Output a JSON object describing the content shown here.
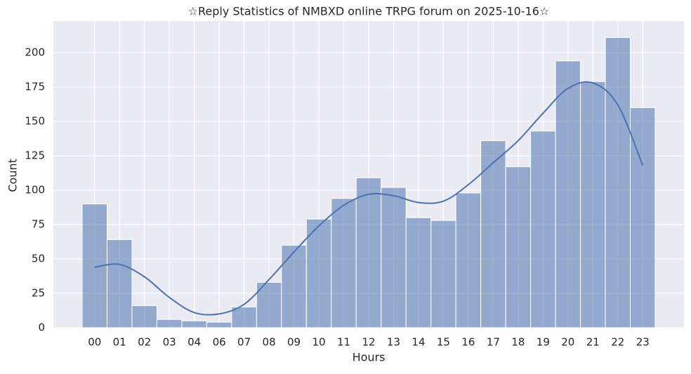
{
  "chart_data": {
    "type": "histogram",
    "title": "☆Reply Statistics of NMBXD online TRPG forum on 2025-10-16☆",
    "x_label": "Hours",
    "y_label": "Count",
    "categories": [
      "00",
      "01",
      "02",
      "03",
      "04",
      "06",
      "07",
      "08",
      "09",
      "10",
      "11",
      "12",
      "13",
      "14",
      "15",
      "16",
      "17",
      "18",
      "19",
      "20",
      "21",
      "22",
      "23"
    ],
    "values": [
      90,
      64,
      16,
      6,
      5,
      4,
      15,
      33,
      60,
      79,
      94,
      109,
      102,
      80,
      78,
      98,
      136,
      117,
      143,
      194,
      179,
      211,
      160
    ],
    "color": "#4c72b0",
    "kde": {
      "values": [
        44,
        46,
        37,
        22,
        11,
        10,
        17,
        35,
        55,
        74,
        89,
        97,
        96,
        91,
        92,
        104,
        120,
        136,
        156,
        174,
        178,
        162,
        118
      ],
      "color": "#4c72b0"
    },
    "ylim": [
      0,
      223
    ],
    "yticks": [
      0,
      25,
      50,
      75,
      100,
      125,
      150,
      175,
      200
    ],
    "grid": true
  }
}
